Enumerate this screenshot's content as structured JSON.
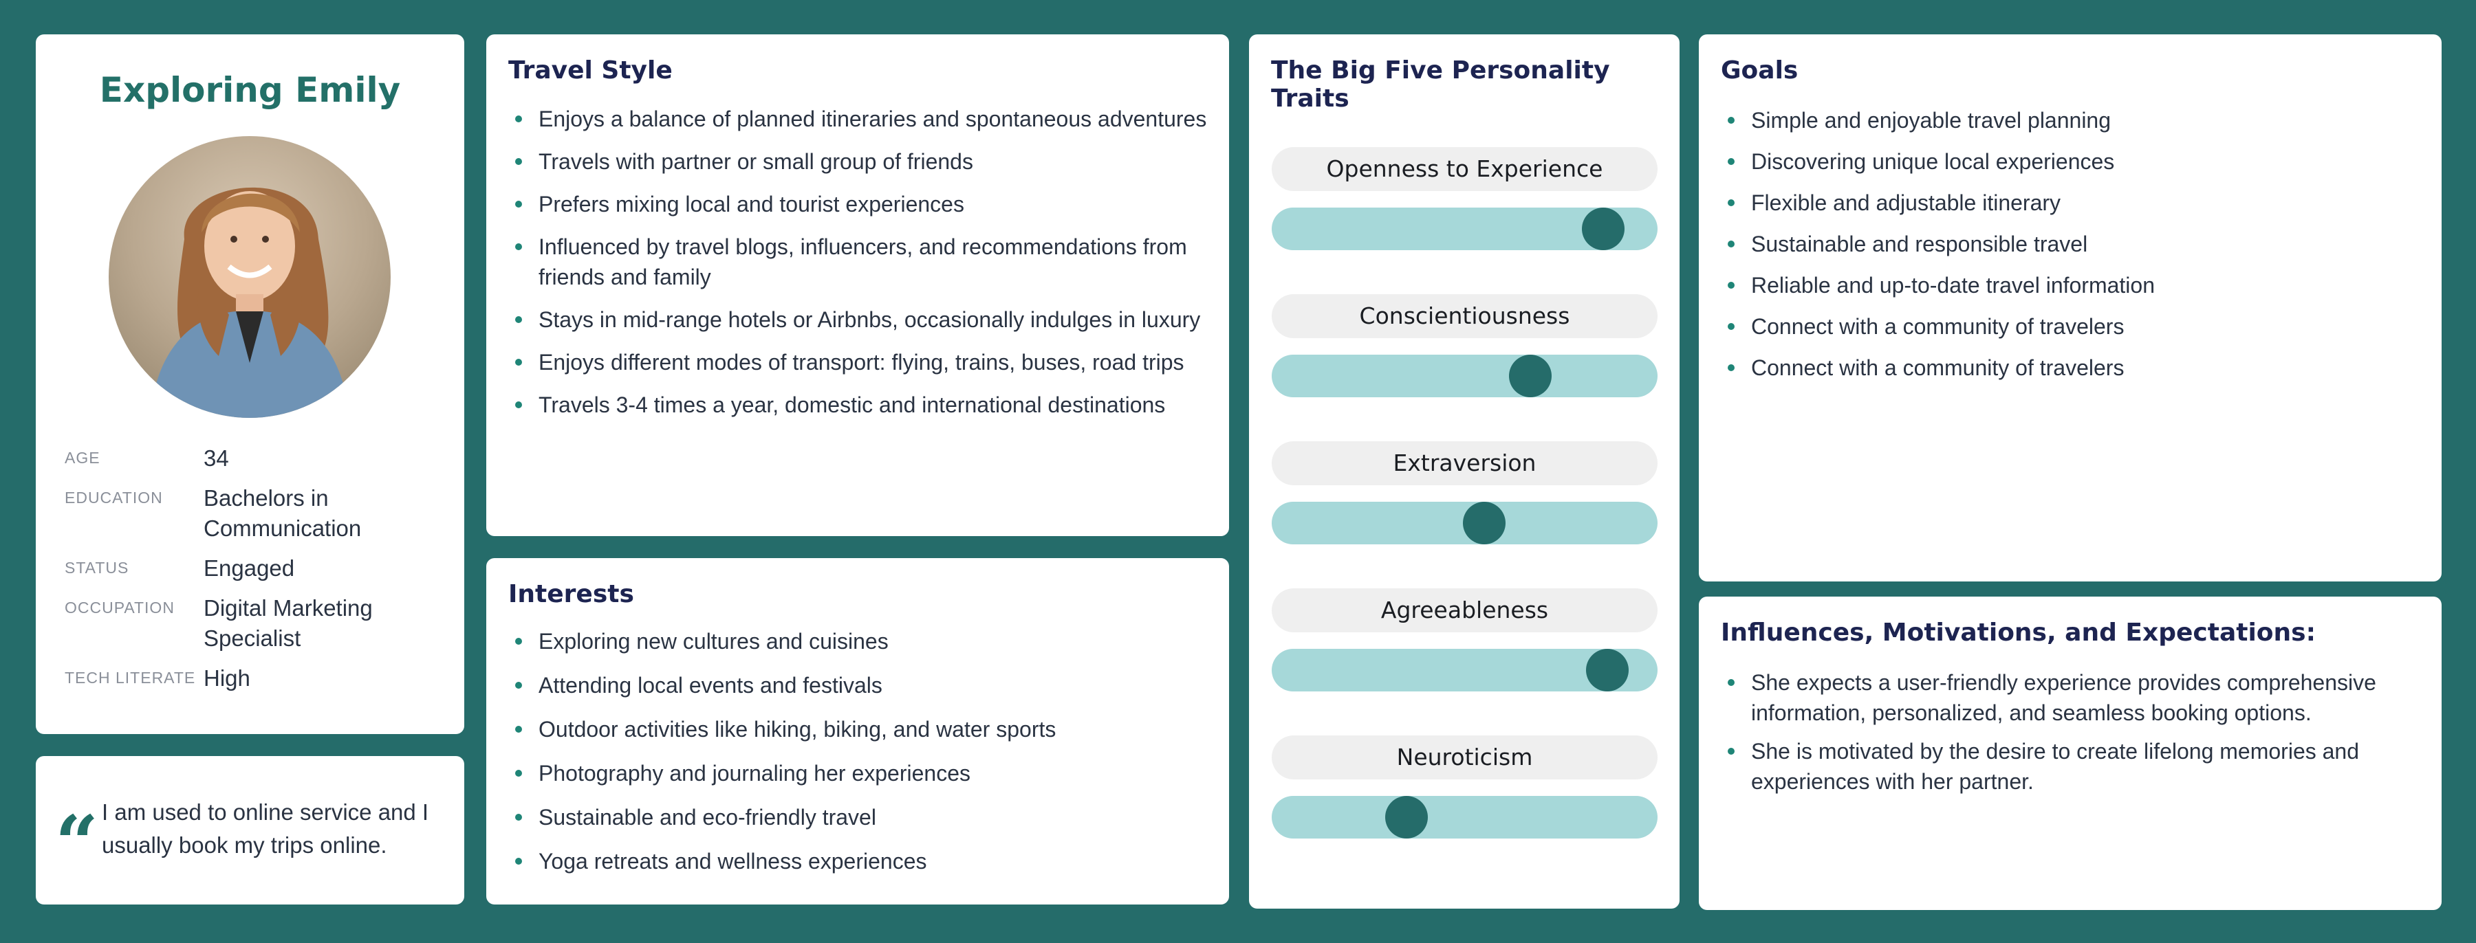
{
  "profile": {
    "name": "Exploring Emily",
    "fields": [
      {
        "label": "AGE",
        "value": "34"
      },
      {
        "label": "EDUCATION",
        "value": "Bachelors in Communication"
      },
      {
        "label": "STATUS",
        "value": "Engaged"
      },
      {
        "label": "OCCUPATION",
        "value": "Digital Marketing Specialist"
      },
      {
        "label": "TECH LITERATE",
        "value": "High"
      }
    ]
  },
  "quote": {
    "mark": "“",
    "text": "I am used to  online service and I usually book my trips online."
  },
  "travel_style": {
    "title": "Travel Style",
    "items": [
      "Enjoys a balance of planned itineraries and spontaneous adventures",
      "Travels with partner or small group of friends",
      "Prefers mixing local and tourist experiences",
      "Influenced by travel blogs, influencers, and recommendations from friends and family",
      "Stays in mid-range hotels or Airbnbs, occasionally indulges in luxury",
      "Enjoys different modes of transport: flying, trains, buses, road trips",
      "Travels 3-4 times a year, domestic and international destinations"
    ]
  },
  "interests": {
    "title": "Interests",
    "items": [
      "Exploring new cultures and cuisines",
      "Attending local events and festivals",
      "Outdoor activities like hiking, biking, and water sports",
      "Photography and journaling her experiences",
      "Sustainable and eco-friendly travel",
      "Yoga retreats and wellness experiences"
    ]
  },
  "big_five": {
    "title": "The Big Five Personality Traits",
    "traits": [
      {
        "label": "Openness to Experience",
        "level": 0.86
      },
      {
        "label": "Conscientiousness",
        "level": 0.67
      },
      {
        "label": "Extraversion",
        "level": 0.55
      },
      {
        "label": "Agreeableness",
        "level": 0.87
      },
      {
        "label": "Neuroticism",
        "level": 0.35
      }
    ]
  },
  "goals": {
    "title": "Goals",
    "items": [
      "Simple and enjoyable travel planning",
      "Discovering unique local experiences",
      "Flexible and adjustable itinerary",
      "Sustainable and responsible travel",
      "Reliable and up-to-date travel information",
      "Connect with a community of travelers",
      "Connect with a community of travelers"
    ]
  },
  "influences": {
    "title": "Influences, Motivations, and Expectations:",
    "items": [
      "She expects a user-friendly experience provides comprehensive information, personalized, and seamless booking options.",
      "She is motivated by the desire to create lifelong memories and experiences with her partner."
    ]
  },
  "colors": {
    "background": "#256c6a",
    "accent": "#237068",
    "track": "#a6d8d9",
    "heading": "#1d2451"
  }
}
